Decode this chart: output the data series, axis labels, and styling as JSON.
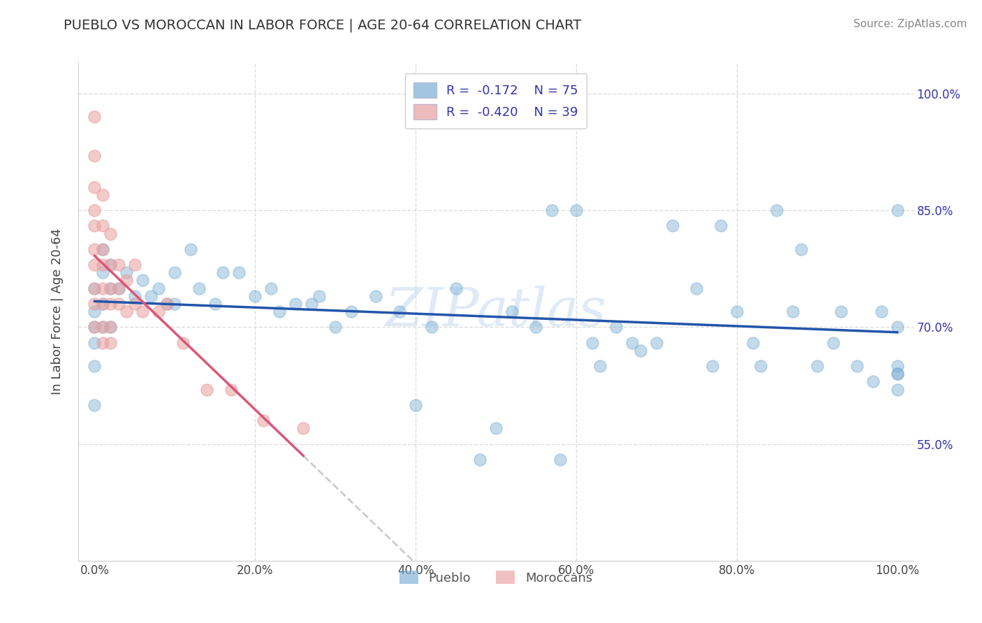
{
  "title": "PUEBLO VS MOROCCAN IN LABOR FORCE | AGE 20-64 CORRELATION CHART",
  "source_text": "Source: ZipAtlas.com",
  "ylabel": "In Labor Force | Age 20-64",
  "xlim": [
    -0.02,
    1.02
  ],
  "ylim": [
    0.4,
    1.04
  ],
  "xticks": [
    0.0,
    0.2,
    0.4,
    0.6,
    0.8,
    1.0
  ],
  "xticklabels": [
    "0.0%",
    "20.0%",
    "40.0%",
    "60.0%",
    "80.0%",
    "100.0%"
  ],
  "ytick_positions": [
    0.55,
    0.7,
    0.85,
    1.0
  ],
  "yticklabels": [
    "55.0%",
    "70.0%",
    "85.0%",
    "100.0%"
  ],
  "pueblo_color": "#7bafd4",
  "moroccan_color": "#e8a0a0",
  "pueblo_line_color": "#2255aa",
  "moroccan_line_color": "#dd5577",
  "moroccan_line_dashed_color": "#cccccc",
  "R_pueblo": -0.172,
  "N_pueblo": 75,
  "R_moroccan": -0.42,
  "N_moroccan": 39,
  "legend_text_color": "#3333aa",
  "title_color": "#333333",
  "watermark": "ZIPatlas",
  "grid_color": "#dddddd",
  "pueblo_x": [
    0.0,
    0.0,
    0.0,
    0.0,
    0.0,
    0.0,
    0.01,
    0.01,
    0.01,
    0.01,
    0.02,
    0.02,
    0.02,
    0.03,
    0.04,
    0.05,
    0.06,
    0.07,
    0.08,
    0.09,
    0.1,
    0.1,
    0.12,
    0.13,
    0.15,
    0.16,
    0.18,
    0.2,
    0.22,
    0.23,
    0.25,
    0.27,
    0.28,
    0.3,
    0.32,
    0.35,
    0.38,
    0.4,
    0.42,
    0.45,
    0.48,
    0.5,
    0.52,
    0.55,
    0.57,
    0.58,
    0.6,
    0.62,
    0.63,
    0.65,
    0.67,
    0.68,
    0.7,
    0.72,
    0.75,
    0.77,
    0.78,
    0.8,
    0.82,
    0.83,
    0.85,
    0.87,
    0.88,
    0.9,
    0.92,
    0.93,
    0.95,
    0.97,
    0.98,
    1.0,
    1.0,
    1.0,
    1.0,
    1.0,
    1.0
  ],
  "pueblo_y": [
    0.75,
    0.72,
    0.7,
    0.68,
    0.65,
    0.6,
    0.8,
    0.77,
    0.73,
    0.7,
    0.78,
    0.75,
    0.7,
    0.75,
    0.77,
    0.74,
    0.76,
    0.74,
    0.75,
    0.73,
    0.77,
    0.73,
    0.8,
    0.75,
    0.73,
    0.77,
    0.77,
    0.74,
    0.75,
    0.72,
    0.73,
    0.73,
    0.74,
    0.7,
    0.72,
    0.74,
    0.72,
    0.6,
    0.7,
    0.75,
    0.53,
    0.57,
    0.72,
    0.7,
    0.85,
    0.53,
    0.85,
    0.68,
    0.65,
    0.7,
    0.68,
    0.67,
    0.68,
    0.83,
    0.75,
    0.65,
    0.83,
    0.72,
    0.68,
    0.65,
    0.85,
    0.72,
    0.8,
    0.65,
    0.68,
    0.72,
    0.65,
    0.63,
    0.72,
    0.85,
    0.7,
    0.65,
    0.64,
    0.62,
    0.64
  ],
  "moroccan_x": [
    0.0,
    0.0,
    0.0,
    0.0,
    0.0,
    0.0,
    0.0,
    0.0,
    0.0,
    0.0,
    0.01,
    0.01,
    0.01,
    0.01,
    0.01,
    0.01,
    0.01,
    0.01,
    0.02,
    0.02,
    0.02,
    0.02,
    0.02,
    0.02,
    0.03,
    0.03,
    0.03,
    0.04,
    0.04,
    0.05,
    0.05,
    0.06,
    0.08,
    0.09,
    0.11,
    0.14,
    0.17,
    0.21,
    0.26
  ],
  "moroccan_y": [
    0.97,
    0.92,
    0.88,
    0.85,
    0.83,
    0.8,
    0.78,
    0.75,
    0.73,
    0.7,
    0.87,
    0.83,
    0.8,
    0.78,
    0.75,
    0.73,
    0.7,
    0.68,
    0.82,
    0.78,
    0.75,
    0.73,
    0.7,
    0.68,
    0.78,
    0.75,
    0.73,
    0.76,
    0.72,
    0.78,
    0.73,
    0.72,
    0.72,
    0.73,
    0.68,
    0.62,
    0.62,
    0.58,
    0.57
  ],
  "legend_pueblo_label": "Pueblo",
  "legend_moroccan_label": "Moroccans"
}
